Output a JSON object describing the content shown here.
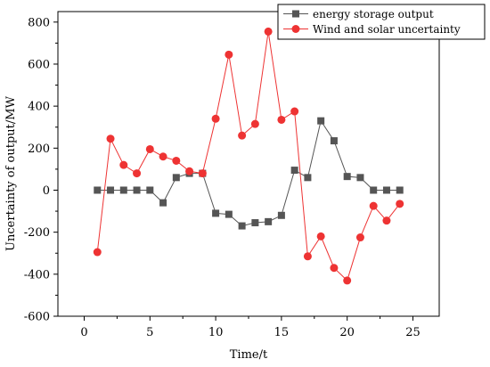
{
  "chart_data": {
    "type": "line",
    "xlabel": "Time/t",
    "ylabel": "Uncertainty of output/MW",
    "xlim": [
      -2,
      27
    ],
    "ylim": [
      -600,
      850
    ],
    "xticks": [
      0,
      5,
      10,
      15,
      20,
      25
    ],
    "yticks": [
      -600,
      -400,
      -200,
      0,
      200,
      400,
      600,
      800
    ],
    "x": [
      1,
      2,
      3,
      4,
      5,
      6,
      7,
      8,
      9,
      10,
      11,
      12,
      13,
      14,
      15,
      16,
      17,
      18,
      19,
      20,
      21,
      22,
      23,
      24
    ],
    "series": [
      {
        "name": "energy storage output",
        "marker": "square",
        "color": "#555555",
        "values": [
          0,
          0,
          0,
          0,
          0,
          -60,
          60,
          80,
          80,
          -110,
          -115,
          -170,
          -155,
          -150,
          -120,
          95,
          60,
          330,
          235,
          65,
          60,
          0,
          0,
          0
        ]
      },
      {
        "name": "Wind and solar uncertainty",
        "marker": "circle",
        "color": "#ee3333",
        "values": [
          -295,
          245,
          120,
          80,
          195,
          160,
          140,
          90,
          80,
          340,
          645,
          260,
          315,
          755,
          335,
          375,
          -315,
          -220,
          -370,
          -430,
          -225,
          -75,
          -145,
          -65
        ]
      }
    ],
    "legend_position": "top-right",
    "grid": false
  }
}
